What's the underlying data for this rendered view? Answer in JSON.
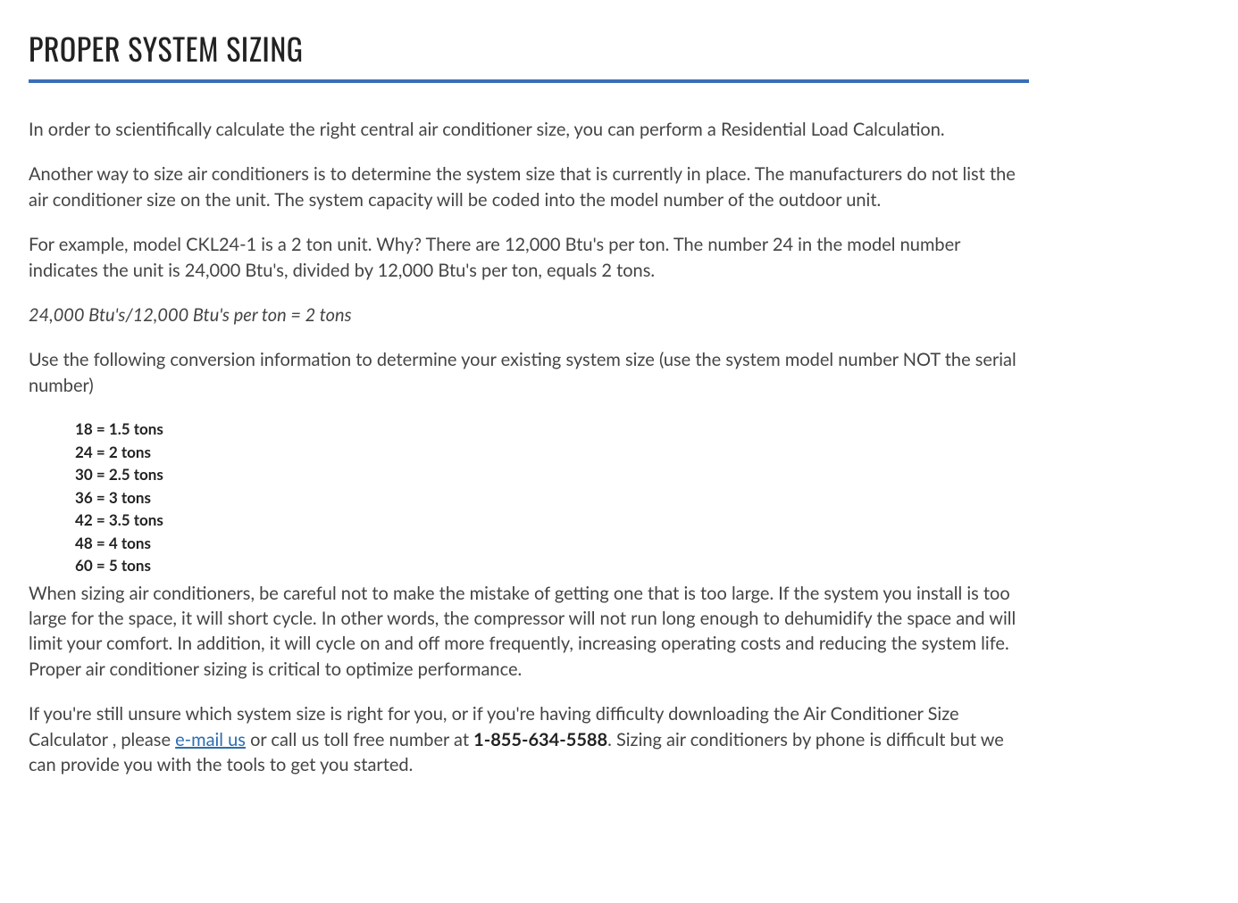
{
  "title": "PROPER SYSTEM SIZING",
  "colors": {
    "rule": "#3a6fb7",
    "text": "#444444",
    "heading": "#222222",
    "link": "#2b6cb0",
    "background": "#ffffff"
  },
  "paragraphs": {
    "p1": "In order to scientifically calculate the right central air conditioner size, you can perform a Residential Load Calculation.",
    "p2": "Another way to size air conditioners is to determine the system size that is currently in place. The manufacturers do not list the air conditioner size on the unit. The system capacity will be coded into the model number of the outdoor unit.",
    "p3": "For example, model CKL24-1 is a 2 ton unit. Why? There are 12,000 Btu's per ton. The number 24 in the model number indicates the unit is 24,000 Btu's, divided by 12,000 Btu's per ton, equals 2 tons.",
    "p4_italic": "24,000 Btu's/12,000 Btu's per ton = 2 tons",
    "p5": "Use the following conversion information to determine your existing system size (use the system model number NOT the serial number)",
    "p6": "When sizing air conditioners, be careful not to make the mistake of getting one that is too large. If the system you install is too large for the space, it will short cycle. In other words, the compressor will not run long enough to dehumidify the space and will limit your comfort. In addition, it will cycle on and off more frequently, increasing operating costs and reducing the system life. Proper air conditioner sizing is critical to optimize performance.",
    "p7_a": "If you're still unsure which system size is right for you, or if you're having difficulty downloading the Air Conditioner Size Calculator , please ",
    "p7_link": "e-mail us",
    "p7_b": " or call us toll free number at ",
    "p7_phone": "1-855-634-5588",
    "p7_c": ". Sizing air conditioners by phone is difficult but we can provide you with the tools to get you started."
  },
  "conversion_list": [
    "18 = 1.5 tons",
    "24 = 2 tons",
    "30 = 2.5 tons",
    "36 = 3 tons",
    "42 = 3.5 tons",
    "48 = 4 tons",
    "60 = 5 tons"
  ]
}
